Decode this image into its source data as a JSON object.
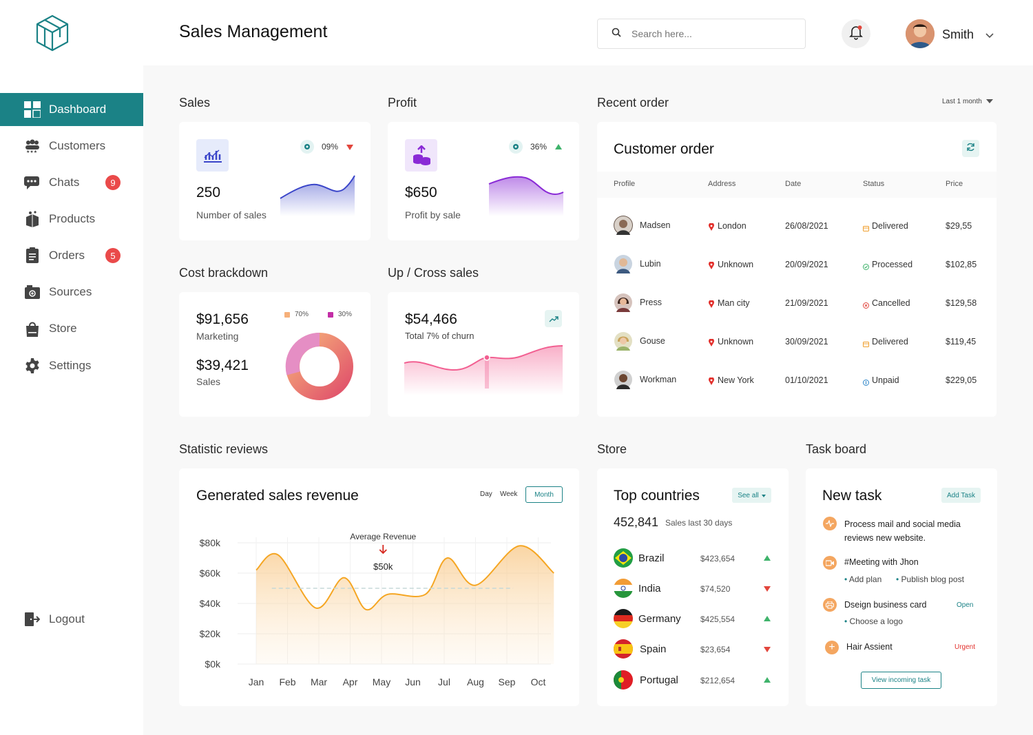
{
  "app": {
    "title": "Sales Management"
  },
  "header": {
    "search_placeholder": "Search here...",
    "user_name": "Smith"
  },
  "sidebar": {
    "items": [
      {
        "label": "Dashboard",
        "icon": "dashboard-icon",
        "active": true
      },
      {
        "label": "Customers",
        "icon": "customers-icon"
      },
      {
        "label": "Chats",
        "icon": "chats-icon",
        "badge": "9"
      },
      {
        "label": "Products",
        "icon": "products-icon"
      },
      {
        "label": "Orders",
        "icon": "orders-icon",
        "badge": "5"
      },
      {
        "label": "Sources",
        "icon": "sources-icon"
      },
      {
        "label": "Store",
        "icon": "store-icon"
      },
      {
        "label": "Settings",
        "icon": "settings-icon"
      }
    ],
    "logout": "Logout"
  },
  "sales": {
    "section": "Sales",
    "change": "09%",
    "value": "250",
    "label": "Number of sales"
  },
  "profit": {
    "section": "Profit",
    "change": "36%",
    "value": "$650",
    "label": "Profit by sale"
  },
  "cost": {
    "section": "Cost brackdown",
    "marketing_value": "$91,656",
    "marketing_label": "Marketing",
    "sales_value": "$39,421",
    "sales_label": "Sales",
    "legend_a": "70%",
    "legend_b": "30%"
  },
  "cross": {
    "section": "Up / Cross sales",
    "value": "$54,466",
    "label": "Total 7% of churn"
  },
  "recent": {
    "section": "Recent order",
    "filter": "Last 1 month",
    "title": "Customer order",
    "headers": [
      "Profile",
      "Address",
      "Date",
      "Status",
      "Price"
    ],
    "rows": [
      {
        "name": "Madsen",
        "address": "London",
        "date": "26/08/2021",
        "status": "Delivered",
        "price": "$29,55"
      },
      {
        "name": "Lubin",
        "address": "Unknown",
        "date": "20/09/2021",
        "status": "Processed",
        "price": "$102,85"
      },
      {
        "name": "Press",
        "address": "Man city",
        "date": "21/09/2021",
        "status": "Cancelled",
        "price": "$129,58"
      },
      {
        "name": "Gouse",
        "address": "Unknown",
        "date": "30/09/2021",
        "status": "Delivered",
        "price": "$119,45"
      },
      {
        "name": "Workman",
        "address": "New York",
        "date": "01/10/2021",
        "status": "Unpaid",
        "price": "$229,05"
      }
    ]
  },
  "stats": {
    "section": "Statistic reviews",
    "title": "Generated sales revenue",
    "tabs": [
      "Day",
      "Week",
      "Month"
    ],
    "avg_label": "Average Revenue",
    "avg_value": "$50k"
  },
  "chart_data": {
    "type": "area",
    "categories": [
      "Jan",
      "Feb",
      "Mar",
      "Apr",
      "May",
      "Jun",
      "Jul",
      "Aug",
      "Sep",
      "Oct"
    ],
    "y_ticks": [
      "$80k",
      "$60k",
      "$40k",
      "$20k",
      "$0k"
    ],
    "ylim": [
      0,
      80
    ],
    "x": [
      0.0,
      0.7,
      1.9,
      2.8,
      3.5,
      4.2,
      5.4,
      6.1,
      7.0,
      8.4,
      9.5
    ],
    "values": [
      62,
      72,
      37,
      57,
      36,
      46,
      46,
      70,
      52,
      78,
      60
    ],
    "average": 50,
    "grid": true
  },
  "store": {
    "section": "Store",
    "title": "Top countries",
    "see_all": "See all",
    "total": "452,841",
    "total_label": "Sales last 30 days",
    "countries": [
      {
        "name": "Brazil",
        "value": "$423,654",
        "trend": "up"
      },
      {
        "name": "India",
        "value": "$74,520",
        "trend": "down"
      },
      {
        "name": "Germany",
        "value": "$425,554",
        "trend": "up"
      },
      {
        "name": "Spain",
        "value": "$23,654",
        "trend": "down"
      },
      {
        "name": "Portugal",
        "value": "$212,654",
        "trend": "up"
      }
    ]
  },
  "tasks": {
    "section": "Task board",
    "title": "New task",
    "add": "Add Task",
    "t1": "Process mail and social media reviews new website.",
    "t2": "#Meeting with Jhon",
    "t2_sub1": "Add plan",
    "t2_sub2": "Publish blog post",
    "t3": "Dseign business card",
    "t3_tag": "Open",
    "t3_sub": "Choose a logo",
    "t4": "Hair Assient",
    "t4_tag": "Urgent",
    "view": "View incoming task"
  },
  "colors": {
    "accent": "#1b8286",
    "badge": "#ea4a4a",
    "up": "#3fb36b",
    "down": "#e2453c",
    "chart": "#f5a623"
  }
}
